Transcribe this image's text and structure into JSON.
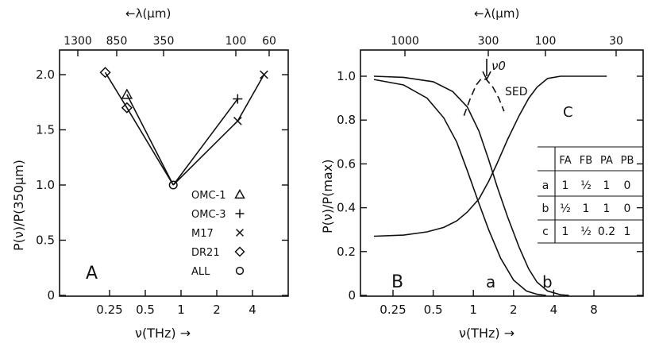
{
  "chart_data": [
    {
      "type": "scatter",
      "panel_label": "A",
      "top_axis_label": "←λ(μm)",
      "top_ticks": [
        "1300",
        "850",
        "350",
        "100",
        "60"
      ],
      "xlabel": "ν(THz) →",
      "ylabel": "P(ν)/P(350μm)",
      "xscale": "log",
      "xticks": [
        "0.25",
        "0.5",
        "1",
        "2",
        "4"
      ],
      "yticks": [
        "0",
        "0.5",
        "1.0",
        "1.5",
        "2.0"
      ],
      "ylim": [
        0,
        2.2
      ],
      "series": [
        {
          "name": "OMC-1",
          "marker": "triangle",
          "x": [
            0.35,
            0.86
          ],
          "y": [
            1.82,
            1.0
          ]
        },
        {
          "name": "OMC-3",
          "marker": "plus",
          "x": [
            0.86,
            3.0
          ],
          "y": [
            1.0,
            1.78
          ]
        },
        {
          "name": "M17",
          "marker": "cross",
          "x": [
            0.86,
            3.0,
            5.0
          ],
          "y": [
            1.0,
            1.58,
            2.0
          ]
        },
        {
          "name": "DR21",
          "marker": "diamond",
          "x": [
            0.23,
            0.35,
            0.86
          ],
          "y": [
            2.02,
            1.7,
            1.0
          ]
        },
        {
          "name": "ALL",
          "marker": "circle",
          "x": [
            0.86
          ],
          "y": [
            1.0
          ]
        }
      ]
    },
    {
      "type": "line",
      "panel_label": "B",
      "top_axis_label": "←λ(μm)",
      "top_ticks": [
        "1000",
        "300",
        "100",
        "30"
      ],
      "xlabel": "ν(THz) →",
      "ylabel": "P(ν)/P(max)",
      "xscale": "log",
      "xticks": [
        "0.25",
        "0.5",
        "1",
        "2",
        "4",
        "8"
      ],
      "yticks": [
        "0",
        "0.2",
        "0.4",
        "0.6",
        "0.8",
        "1.0"
      ],
      "ylim": [
        0,
        1.1
      ],
      "annotations": {
        "nu0": "ν0",
        "sed": "SED"
      },
      "series": [
        {
          "name": "a",
          "x": [
            0.18,
            0.3,
            0.45,
            0.6,
            0.75,
            0.9,
            1.1,
            1.3,
            1.6,
            2.0,
            2.5,
            3.0,
            3.5
          ],
          "y": [
            0.985,
            0.96,
            0.9,
            0.81,
            0.7,
            0.57,
            0.42,
            0.3,
            0.17,
            0.07,
            0.02,
            0.005,
            0.0
          ]
        },
        {
          "name": "b",
          "x": [
            0.18,
            0.3,
            0.5,
            0.7,
            0.9,
            1.1,
            1.3,
            1.5,
            1.8,
            2.2,
            2.6,
            3.0,
            3.6,
            4.5,
            5.2
          ],
          "y": [
            1.0,
            0.995,
            0.975,
            0.93,
            0.86,
            0.75,
            0.62,
            0.5,
            0.36,
            0.22,
            0.12,
            0.06,
            0.02,
            0.003,
            0.0
          ]
        },
        {
          "name": "C",
          "x": [
            0.18,
            0.3,
            0.45,
            0.6,
            0.75,
            0.9,
            1.1,
            1.3,
            1.5,
            1.8,
            2.2,
            2.6,
            3.0,
            3.6,
            4.5,
            5.2,
            6.0,
            10.0
          ],
          "y": [
            0.27,
            0.275,
            0.29,
            0.31,
            0.34,
            0.38,
            0.44,
            0.52,
            0.6,
            0.71,
            0.82,
            0.9,
            0.95,
            0.99,
            1.0,
            1.0,
            1.0,
            1.0
          ]
        },
        {
          "name": "SED",
          "style": "dashed",
          "x": [
            0.85,
            0.95,
            1.05,
            1.15,
            1.25,
            1.4,
            1.55,
            1.7
          ],
          "y": [
            0.82,
            0.9,
            0.96,
            0.99,
            0.985,
            0.95,
            0.9,
            0.84
          ]
        }
      ],
      "table": {
        "header": [
          "",
          "FA",
          "FB",
          "PA",
          "PB"
        ],
        "rows": [
          [
            "a",
            "1",
            "½",
            "1",
            "0"
          ],
          [
            "b",
            "½",
            "1",
            "1",
            "0"
          ],
          [
            "c",
            "1",
            "½",
            "0.2",
            "1"
          ]
        ]
      }
    }
  ]
}
